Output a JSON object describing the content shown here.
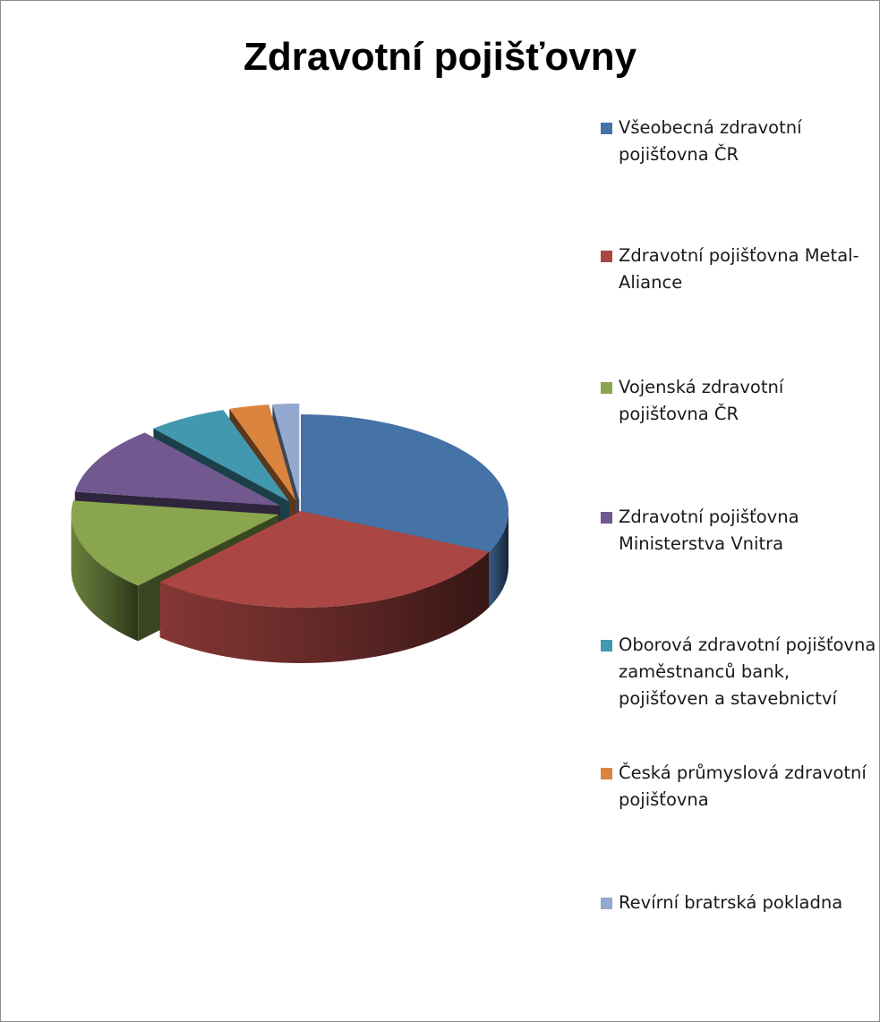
{
  "chart_data": {
    "type": "pie",
    "title": "Zdravotní pojišťovny",
    "legend_position": "right",
    "categories": [
      "Všeobecná zdravotní pojišťovna ČR",
      "Zdravotní pojišťovna Metal-Aliance",
      "Vojenská zdravotní pojišťovna ČR",
      "Zdravotní pojišťovna Ministerstva Vnitra",
      "Oborová zdravotní pojišťovna zaměstnanců bank, pojišťoven a stavebnictví",
      "Česká průmyslová zdravotní pojišťovna",
      "Revírní bratrská pokladna"
    ],
    "values": [
      31,
      29,
      15,
      11,
      6,
      3,
      2
    ],
    "colors": [
      "#4572A7",
      "#AA4643",
      "#89A54E",
      "#71588F",
      "#4198AF",
      "#DB843D",
      "#93A9CF"
    ],
    "exploded": [
      false,
      false,
      true,
      true,
      true,
      true,
      true
    ]
  }
}
